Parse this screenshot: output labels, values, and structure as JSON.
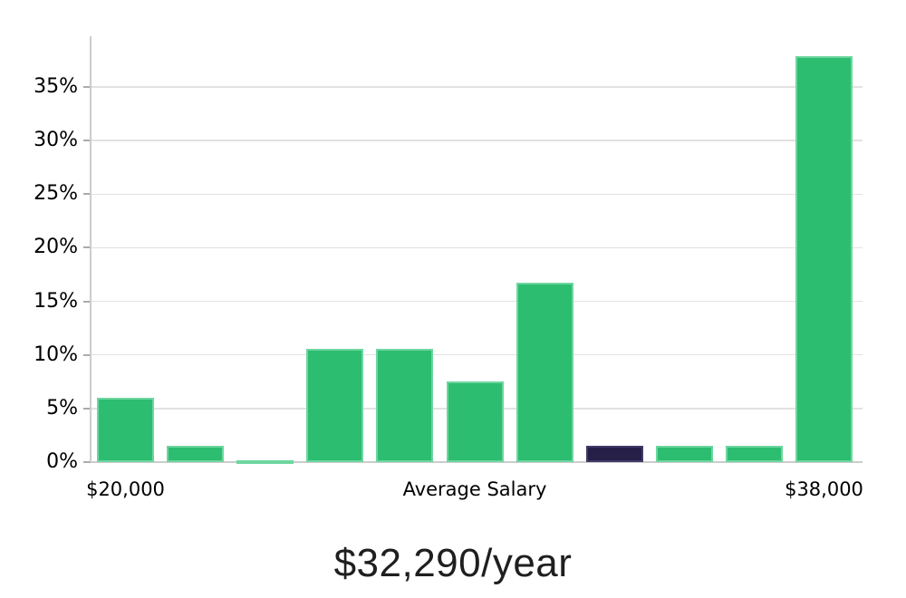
{
  "chart_data": {
    "type": "bar",
    "title": "$32,290/year",
    "xlabel": "",
    "ylabel": "",
    "grid": "horizontal",
    "legend": "none",
    "ylim": [
      0,
      39.7
    ],
    "y_ticks_percent": [
      0,
      5,
      10,
      15,
      20,
      25,
      30,
      35
    ],
    "y_tick_labels": [
      "0%",
      "5%",
      "10%",
      "15%",
      "20%",
      "25%",
      "30%",
      "35%"
    ],
    "values_percent": [
      6.0,
      1.5,
      0.1,
      10.6,
      10.6,
      7.5,
      16.7,
      1.5,
      1.5,
      1.5,
      37.9
    ],
    "highlight_bar_index": 7,
    "x_axis_labels": [
      {
        "text": "$20,000",
        "bar_index": 0
      },
      {
        "text": "Average Salary",
        "bar_index": 5
      },
      {
        "text": "$38,000",
        "bar_index": 10
      }
    ],
    "colors": {
      "bar_fill": "#2dbd70",
      "bar_border": "#6ed6a0",
      "highlight_fill": "#262048",
      "highlight_border": "#413a69",
      "gridline": "#e2e2e2",
      "axis_line": "#cccccc",
      "tick_mark": "#ababab",
      "tick_text": "#000000",
      "title_text": "#1f1f1f",
      "background": "#ffffff"
    }
  }
}
